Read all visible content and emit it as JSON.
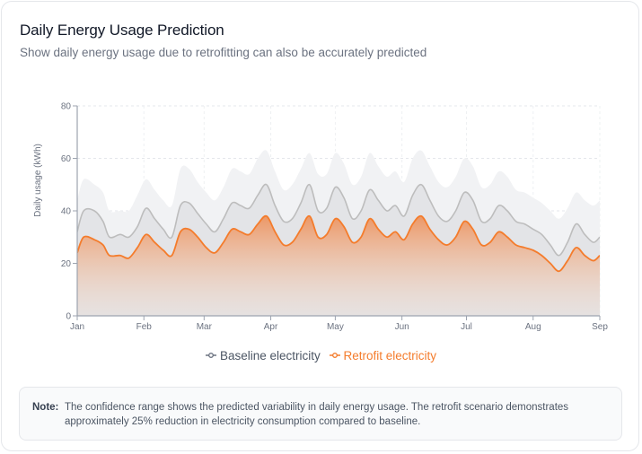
{
  "header": {
    "title": "Daily Energy Usage Prediction",
    "subtitle": "Show daily energy usage due to retrofitting can also be accurately predicted"
  },
  "note": {
    "label": "Note:",
    "text": "The confidence range shows the predicted variability in daily energy usage. The retrofit scenario demonstrates approximately 25% reduction in electricity consumption compared to baseline."
  },
  "colors": {
    "baseline": "#bdbdbd",
    "baseline_band": "#f1f2f4",
    "retrofit": "#f47c2c",
    "retrofit_fill_top": "#ee8f58",
    "axis": "#9ca3af",
    "grid": "#e5e7eb"
  },
  "chart_data": {
    "type": "area",
    "title": "Daily Energy Usage Prediction",
    "xlabel": "",
    "ylabel": "Daily usage (kWh)",
    "ylim": [
      0,
      80
    ],
    "yticks": [
      0,
      20,
      40,
      60,
      80
    ],
    "xlim_days": [
      0,
      243
    ],
    "xticks": [
      {
        "label": "Jan",
        "day": 0
      },
      {
        "label": "Feb",
        "day": 31
      },
      {
        "label": "Mar",
        "day": 59
      },
      {
        "label": "Apr",
        "day": 90
      },
      {
        "label": "May",
        "day": 120
      },
      {
        "label": "Jun",
        "day": 151
      },
      {
        "label": "Jul",
        "day": 181
      },
      {
        "label": "Aug",
        "day": 212
      },
      {
        "label": "Sep",
        "day": 243
      }
    ],
    "grid": true,
    "legend": {
      "position": "bottom",
      "entries": [
        "Baseline electricity",
        "Retrofit electricity"
      ]
    },
    "x_days": [
      0,
      3,
      8,
      12,
      15,
      20,
      24,
      28,
      32,
      36,
      40,
      44,
      48,
      52,
      56,
      60,
      64,
      68,
      72,
      76,
      80,
      84,
      88,
      92,
      96,
      100,
      104,
      108,
      112,
      116,
      120,
      124,
      128,
      132,
      136,
      140,
      144,
      148,
      152,
      156,
      160,
      164,
      168,
      172,
      176,
      180,
      184,
      188,
      192,
      196,
      200,
      204,
      208,
      212,
      216,
      220,
      224,
      228,
      232,
      236,
      240,
      243
    ],
    "series": [
      {
        "name": "Baseline electricity",
        "values": [
          32,
          40,
          40,
          36,
          30,
          31,
          30,
          34,
          41,
          37,
          33,
          30,
          42,
          43,
          39,
          35,
          32,
          37,
          43,
          42,
          41,
          46,
          50,
          42,
          36,
          37,
          43,
          50,
          40,
          41,
          49,
          45,
          37,
          40,
          48,
          44,
          40,
          42,
          38,
          46,
          50,
          44,
          38,
          36,
          40,
          47,
          44,
          36,
          37,
          42,
          40,
          36,
          35,
          33,
          31,
          27,
          23,
          28,
          35,
          31,
          28,
          30
        ]
      },
      {
        "name": "Baseline upper range",
        "values": [
          44,
          52,
          50,
          47,
          40,
          40,
          40,
          46,
          52,
          48,
          44,
          42,
          56,
          56,
          51,
          47,
          44,
          49,
          56,
          55,
          54,
          60,
          63,
          55,
          48,
          50,
          56,
          62,
          54,
          54,
          62,
          58,
          50,
          53,
          62,
          57,
          53,
          55,
          51,
          60,
          63,
          57,
          51,
          49,
          53,
          60,
          57,
          49,
          50,
          55,
          53,
          48,
          47,
          45,
          43,
          40,
          37,
          41,
          47,
          44,
          42,
          44
        ]
      },
      {
        "name": "Retrofit electricity",
        "values": [
          24,
          30,
          29,
          27,
          23,
          23,
          22,
          26,
          31,
          28,
          25,
          23,
          32,
          33,
          30,
          26,
          24,
          28,
          33,
          32,
          31,
          35,
          38,
          32,
          27,
          28,
          33,
          38,
          30,
          31,
          37,
          34,
          28,
          30,
          37,
          33,
          30,
          32,
          29,
          35,
          38,
          33,
          29,
          27,
          30,
          36,
          33,
          27,
          28,
          32,
          30,
          27,
          26,
          25,
          23,
          20,
          17,
          21,
          26,
          23,
          21,
          23
        ]
      }
    ]
  }
}
